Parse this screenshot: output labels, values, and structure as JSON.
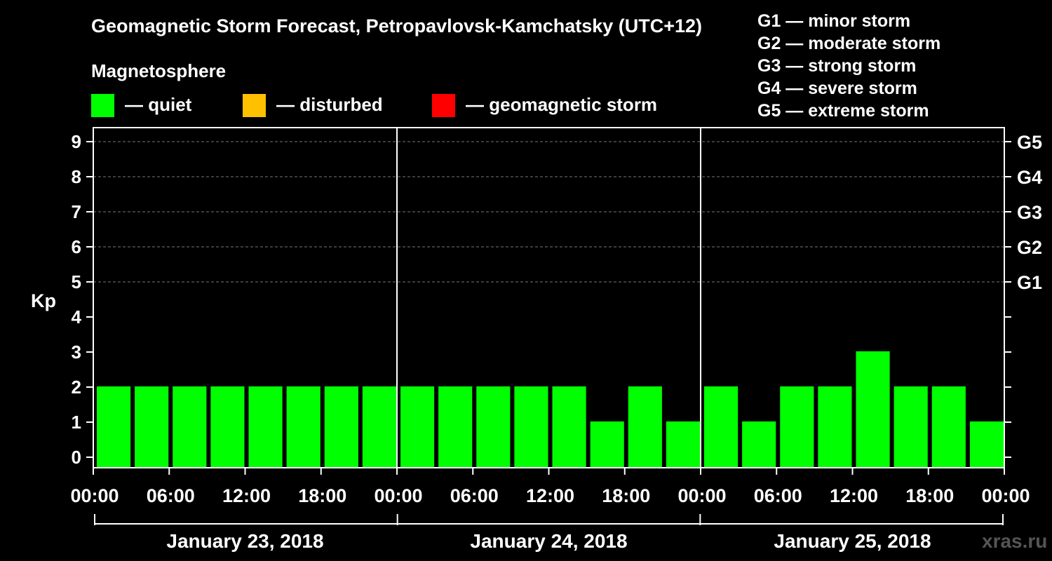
{
  "chart_data": {
    "type": "bar",
    "title": "Geomagnetic Storm Forecast, Petropavlovsk-Kamchatsky (UTC+12)",
    "subtitle": "Magnetosphere",
    "ylabel": "Kp",
    "ylim": [
      0,
      9
    ],
    "y_ticks": [
      "0",
      "1",
      "2",
      "3",
      "4",
      "5",
      "6",
      "7",
      "8",
      "9"
    ],
    "right_axis_labels": [
      {
        "kp": 5,
        "label": "G1"
      },
      {
        "kp": 6,
        "label": "G2"
      },
      {
        "kp": 7,
        "label": "G3"
      },
      {
        "kp": 8,
        "label": "G4"
      },
      {
        "kp": 9,
        "label": "G5"
      }
    ],
    "x_tick_labels": [
      "00:00",
      "06:00",
      "12:00",
      "18:00",
      "00:00",
      "06:00",
      "12:00",
      "18:00",
      "00:00",
      "06:00",
      "12:00",
      "18:00",
      "00:00"
    ],
    "days": [
      "January 23, 2018",
      "January 24, 2018",
      "January 25, 2018"
    ],
    "values": [
      2,
      2,
      2,
      2,
      2,
      2,
      2,
      2,
      2,
      2,
      2,
      2,
      2,
      1,
      2,
      1,
      2,
      1,
      2,
      2,
      3,
      2,
      2,
      1
    ],
    "bar_interval_hours": 3,
    "grid": "dashed horizontal lines at Kp 5-9",
    "colors": {
      "quiet": "#00ff00",
      "disturbed": "#ffc000",
      "storm": "#ff0000"
    }
  },
  "legend": {
    "quiet": "— quiet",
    "disturbed": "— disturbed",
    "storm": "— geomagnetic storm"
  },
  "g_legend": [
    "G1 — minor storm",
    "G2 — moderate storm",
    "G3 — strong storm",
    "G4 — severe storm",
    "G5 — extreme storm"
  ],
  "watermark": "xras.ru"
}
